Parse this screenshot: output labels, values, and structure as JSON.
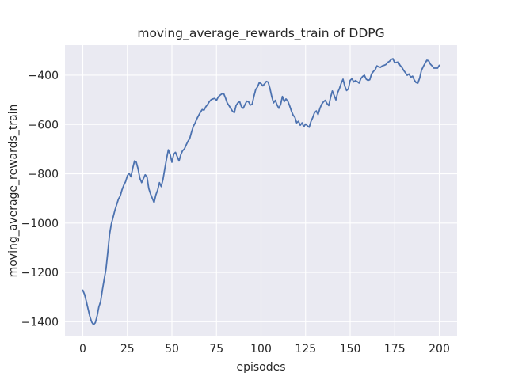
{
  "chart_data": {
    "type": "line",
    "title": "moving_average_rewards_train of DDPG",
    "xlabel": "episodes",
    "ylabel": "moving_average_rewards_train",
    "xlim": [
      -10,
      210
    ],
    "ylim": [
      -1460,
      -278
    ],
    "xticks": [
      0,
      25,
      50,
      75,
      100,
      125,
      150,
      175,
      200
    ],
    "yticks": [
      -1400,
      -1200,
      -1000,
      -800,
      -600,
      -400
    ],
    "grid": true,
    "legend_position": "none",
    "style": {
      "figure_background": "#ffffff",
      "axes_background": "#eaeaf2",
      "grid_color": "#ffffff",
      "line_color": "#4c72b0",
      "text_color": "#262626"
    },
    "series": [
      {
        "name": "moving_average_rewards_train",
        "x_start": 0,
        "x_step": 1,
        "values": [
          -1272,
          -1290,
          -1318,
          -1350,
          -1380,
          -1402,
          -1412,
          -1404,
          -1378,
          -1340,
          -1318,
          -1270,
          -1228,
          -1186,
          -1120,
          -1046,
          -1004,
          -976,
          -948,
          -925,
          -903,
          -890,
          -865,
          -846,
          -832,
          -808,
          -798,
          -812,
          -778,
          -748,
          -753,
          -780,
          -818,
          -836,
          -820,
          -804,
          -812,
          -860,
          -882,
          -900,
          -917,
          -885,
          -866,
          -836,
          -852,
          -822,
          -780,
          -738,
          -703,
          -722,
          -753,
          -721,
          -713,
          -731,
          -748,
          -722,
          -706,
          -699,
          -683,
          -668,
          -657,
          -630,
          -608,
          -594,
          -577,
          -563,
          -550,
          -539,
          -542,
          -528,
          -519,
          -507,
          -499,
          -496,
          -494,
          -502,
          -488,
          -481,
          -476,
          -474,
          -491,
          -512,
          -523,
          -535,
          -546,
          -552,
          -523,
          -512,
          -507,
          -528,
          -534,
          -519,
          -505,
          -508,
          -521,
          -518,
          -486,
          -458,
          -448,
          -430,
          -434,
          -443,
          -435,
          -425,
          -428,
          -454,
          -486,
          -512,
          -502,
          -521,
          -534,
          -518,
          -486,
          -507,
          -496,
          -505,
          -523,
          -545,
          -562,
          -571,
          -593,
          -587,
          -603,
          -593,
          -609,
          -598,
          -605,
          -611,
          -588,
          -572,
          -552,
          -545,
          -560,
          -535,
          -518,
          -508,
          -502,
          -515,
          -523,
          -490,
          -464,
          -482,
          -500,
          -470,
          -454,
          -432,
          -416,
          -445,
          -462,
          -455,
          -421,
          -414,
          -427,
          -422,
          -426,
          -432,
          -414,
          -405,
          -400,
          -416,
          -421,
          -418,
          -395,
          -385,
          -378,
          -362,
          -366,
          -368,
          -362,
          -360,
          -357,
          -348,
          -344,
          -336,
          -333,
          -350,
          -348,
          -346,
          -360,
          -368,
          -380,
          -390,
          -400,
          -395,
          -408,
          -404,
          -420,
          -430,
          -432,
          -411,
          -380,
          -365,
          -352,
          -339,
          -341,
          -355,
          -362,
          -371,
          -371,
          -371,
          -360
        ]
      }
    ]
  }
}
